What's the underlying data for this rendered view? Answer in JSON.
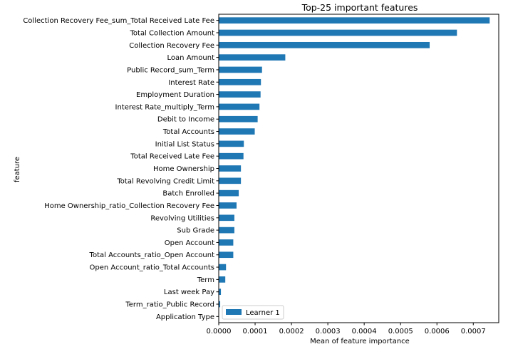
{
  "chart_data": {
    "type": "bar",
    "orientation": "horizontal",
    "title": "Top-25 important features",
    "xlabel": "Mean of feature importance",
    "ylabel": "feature",
    "xlim": [
      0,
      0.00077
    ],
    "xticks": [
      0.0,
      0.0001,
      0.0002,
      0.0003,
      0.0004,
      0.0005,
      0.0006,
      0.0007
    ],
    "xtick_labels": [
      "0.0000",
      "0.0001",
      "0.0002",
      "0.0003",
      "0.0004",
      "0.0005",
      "0.0006",
      "0.0007"
    ],
    "grid": false,
    "legend_position": "lower-left",
    "bar_color": "#1f77b4",
    "categories": [
      "Collection Recovery Fee_sum_Total Received Late Fee",
      "Total Collection Amount",
      "Collection Recovery Fee",
      "Loan Amount",
      "Public Record_sum_Term",
      "Interest Rate",
      "Employment Duration",
      "Interest Rate_multiply_Term",
      "Debit to Income",
      "Total Accounts",
      "Initial List Status",
      "Total Received Late Fee",
      "Home Ownership",
      "Total Revolving Credit Limit",
      "Batch Enrolled",
      "Home Ownership_ratio_Collection Recovery Fee",
      "Revolving Utilities",
      "Sub Grade",
      "Open Account",
      "Total Accounts_ratio_Open Account",
      "Open Account_ratio_Total Accounts",
      "Term",
      "Last week Pay",
      "Term_ratio_Public Record",
      "Application Type"
    ],
    "series": [
      {
        "name": "Learner 1",
        "values": [
          0.000745,
          0.000655,
          0.00058,
          0.000183,
          0.000119,
          0.000116,
          0.000115,
          0.000112,
          0.000107,
          9.9e-05,
          6.9e-05,
          6.8e-05,
          6.1e-05,
          6.1e-05,
          5.5e-05,
          4.9e-05,
          4.3e-05,
          4.3e-05,
          4e-05,
          4e-05,
          2e-05,
          1.8e-05,
          6e-06,
          4e-06,
          1e-06
        ]
      }
    ]
  }
}
